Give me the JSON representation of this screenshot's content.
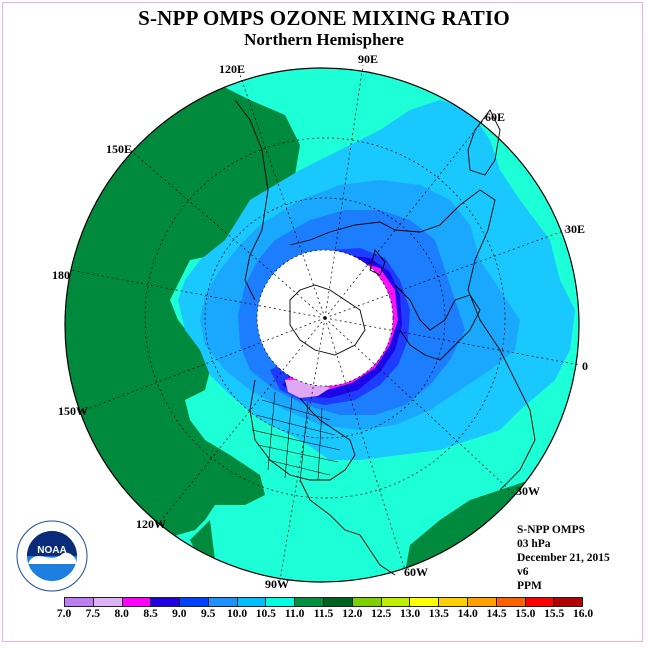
{
  "title": "S-NPP OMPS OZONE MIXING RATIO",
  "subtitle": "Northern Hemisphere",
  "longitude_labels": {
    "e120": "120E",
    "e90": "90E",
    "e60": "60E",
    "e30": "30E",
    "e150": "150E",
    "d180": "180",
    "zero": "0",
    "w150": "150W",
    "w120": "120W",
    "w90": "90W",
    "w60": "60W",
    "w30": "30W"
  },
  "info": {
    "instrument": "S-NPP OMPS",
    "level": "03 hPa",
    "date": "December 21, 2015",
    "version": "v6",
    "units": "PPM"
  },
  "colorbar": {
    "ticks": [
      "7.0",
      "7.5",
      "8.0",
      "8.5",
      "9.0",
      "9.5",
      "10.0",
      "10.5",
      "11.0",
      "11.5",
      "12.0",
      "12.5",
      "13.0",
      "13.5",
      "14.0",
      "14.5",
      "15.0",
      "15.5",
      "16.0"
    ],
    "colors": [
      "#bd7ff0",
      "#dcb2f5",
      "#ff00ff",
      "#2000e0",
      "#0040ff",
      "#1e90ff",
      "#00bfff",
      "#00ffe0",
      "#009040",
      "#006420",
      "#7fd000",
      "#c0f000",
      "#ffff00",
      "#ffd000",
      "#ffa000",
      "#ff6000",
      "#ff0000",
      "#b00000"
    ]
  },
  "map_colors": {
    "c11_5": "#008a3e",
    "c11_0": "#1dffd6",
    "c10_5": "#18c8ff",
    "c10_0": "#1aa8ff",
    "c9_5": "#1c7eff",
    "c9_0": "#1e3cff",
    "c8_5": "#1a06e6",
    "c8_0": "#ff10ff",
    "c7_5": "#e0a8f4",
    "nodata": "#ffffff"
  },
  "logo_text": "NOAA"
}
